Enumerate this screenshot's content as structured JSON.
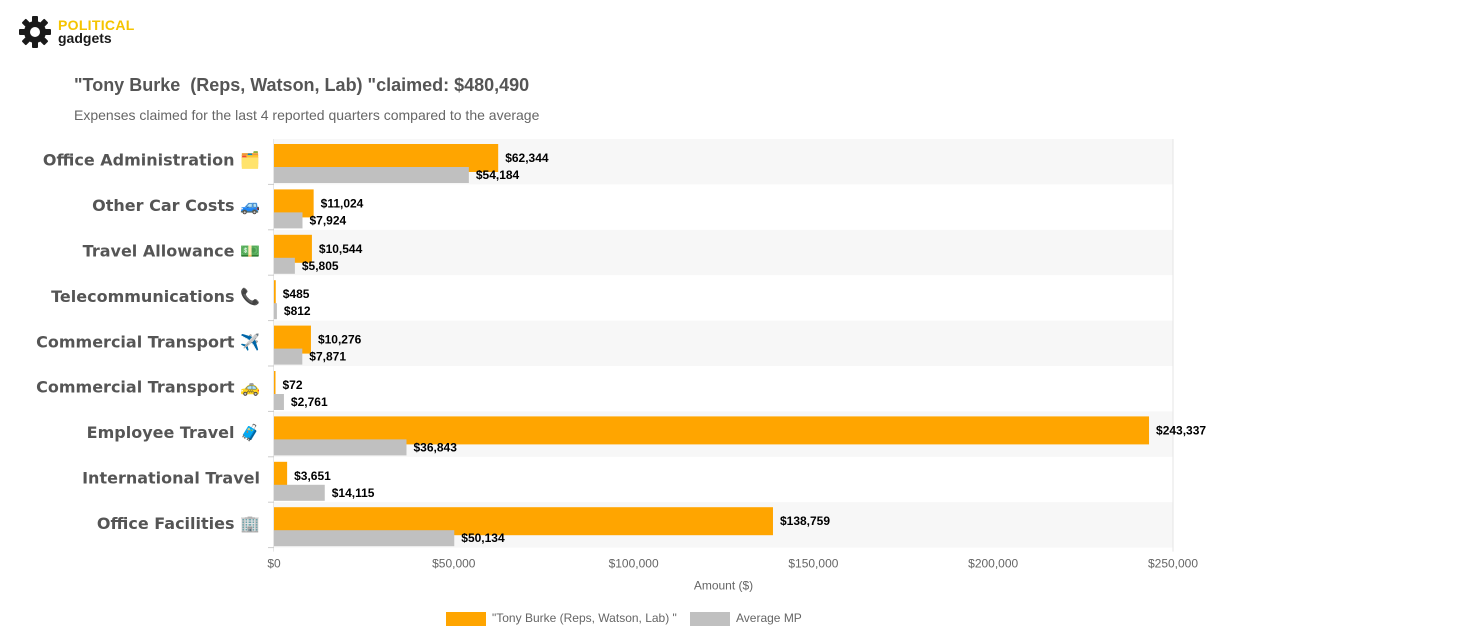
{
  "brand": {
    "line1": "POLITICAL",
    "line2": "gadgets"
  },
  "header": {
    "title": "\"Tony Burke  (Reps, Watson, Lab) \"claimed: $480,490",
    "subtitle": "Expenses claimed for the last 4 reported quarters compared to the average"
  },
  "colors": {
    "primary": "#ffa500",
    "average": "#c0c0c0",
    "band": "#f7f7f7"
  },
  "chart_data": {
    "type": "bar",
    "orientation": "horizontal",
    "categories": [
      "Office Administration 🗂️",
      "Other Car Costs 🚙",
      "Travel Allowance 💵",
      "Telecommunications 📞",
      "Commercial Transport ✈️",
      "Commercial Transport 🚕",
      "Employee Travel 🧳",
      "International Travel",
      "Office Facilities 🏢"
    ],
    "series": [
      {
        "name": "\"Tony Burke  (Reps, Watson, Lab) \"",
        "values": [
          62344,
          11024,
          10544,
          485,
          10276,
          72,
          243337,
          3651,
          138759
        ]
      },
      {
        "name": "Average MP",
        "values": [
          54184,
          7924,
          5805,
          812,
          7871,
          2761,
          36843,
          14115,
          50134
        ]
      }
    ],
    "data_labels": [
      [
        "$62,344",
        "$11,024",
        "$10,544",
        "$485",
        "$10,276",
        "$72",
        "$243,337",
        "$3,651",
        "$138,759"
      ],
      [
        "$54,184",
        "$7,924",
        "$5,805",
        "$812",
        "$7,871",
        "$2,761",
        "$36,843",
        "$14,115",
        "$50,134"
      ]
    ],
    "xlabel": "Amount ($)",
    "xlim": [
      0,
      250000
    ],
    "xticks": [
      0,
      50000,
      100000,
      150000,
      200000,
      250000
    ],
    "xtick_labels": [
      "$0",
      "$50,000",
      "$100,000",
      "$150,000",
      "$200,000",
      "$250,000"
    ],
    "legend_position": "bottom-center",
    "grid": false
  }
}
